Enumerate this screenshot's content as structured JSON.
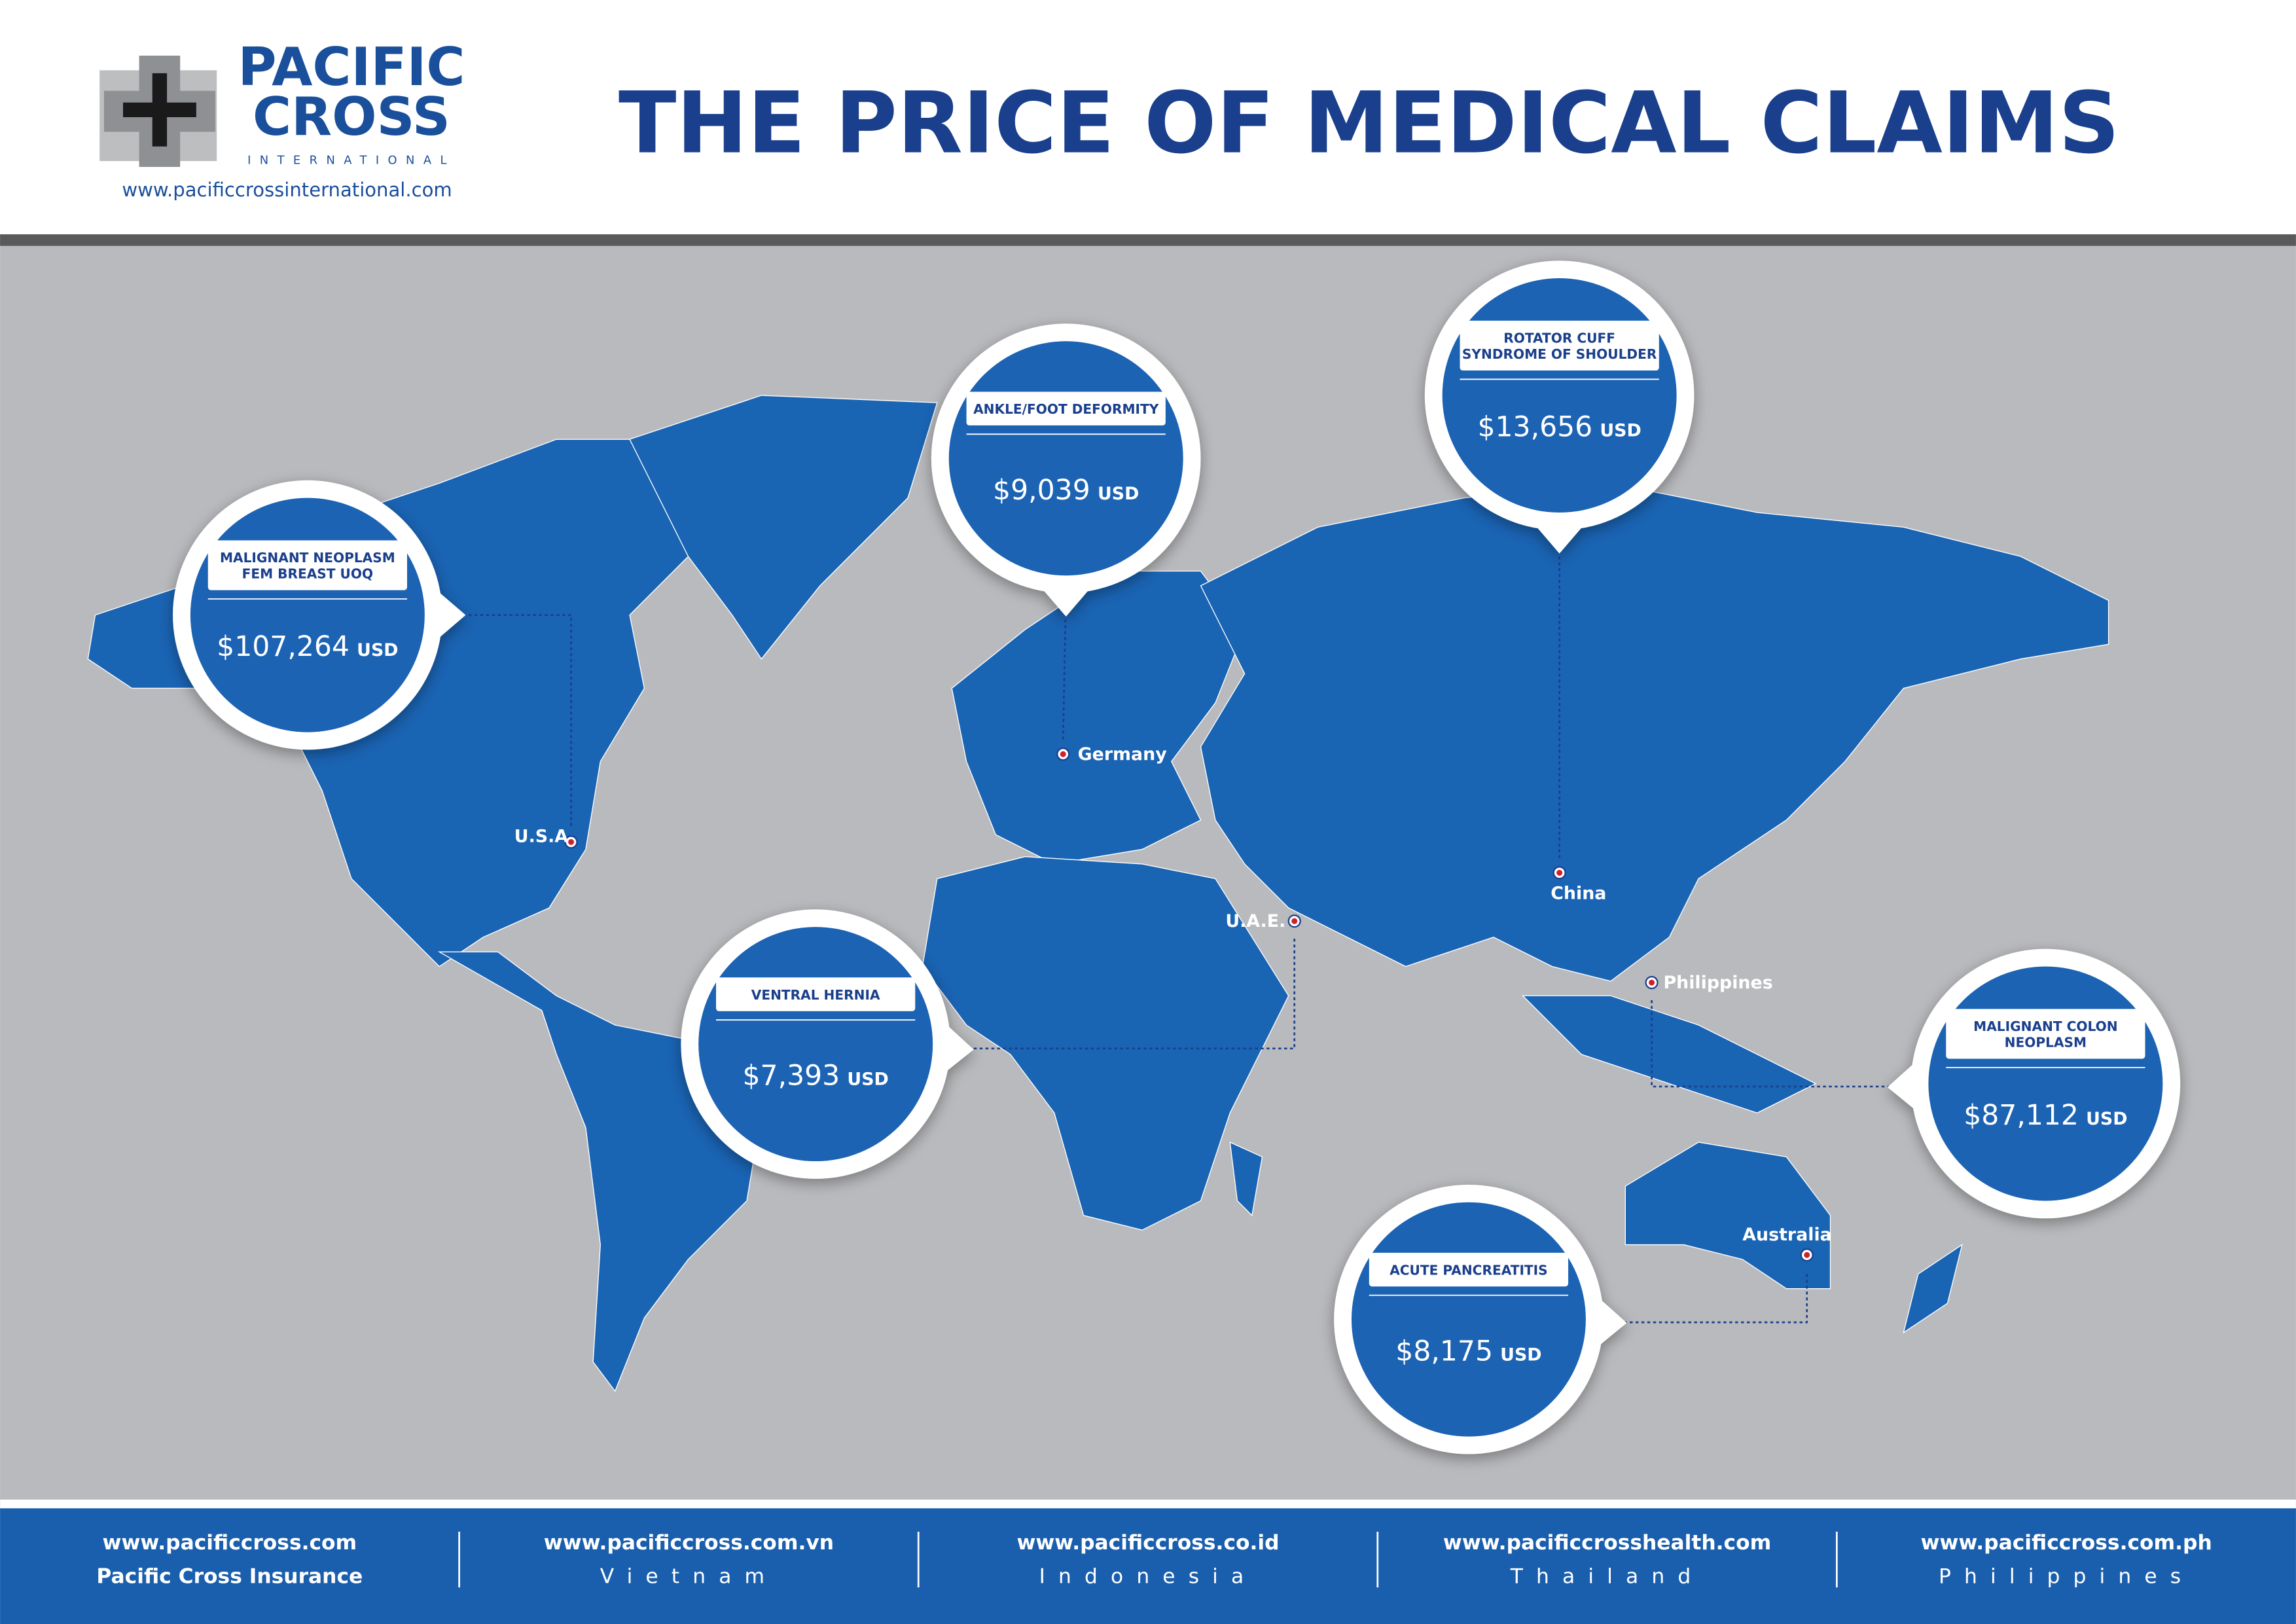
{
  "header": {
    "brand": [
      "PACIFIC",
      "CROSS"
    ],
    "brand_sub": "INTERNATIONAL",
    "url": "www.pacificcrossinternational.com",
    "title": "THE PRICE OF MEDICAL CLAIMS"
  },
  "callouts": [
    {
      "label": [
        "MALIGNANT NEOPLASM",
        "FEM BREAST UOQ"
      ],
      "amount": "$107,264",
      "unit": "USD",
      "country": "U.S.A"
    },
    {
      "label": [
        "ANKLE/FOOT DEFORMITY"
      ],
      "amount": "$9,039",
      "unit": "USD",
      "country": "Germany"
    },
    {
      "label": [
        "ROTATOR CUFF",
        "SYNDROME OF SHOULDER"
      ],
      "amount": "$13,656",
      "unit": "USD",
      "country": "China"
    },
    {
      "label": [
        "VENTRAL HERNIA"
      ],
      "amount": "$7,393",
      "unit": "USD",
      "country": "U.A.E."
    },
    {
      "label": [
        "MALIGNANT COLON",
        "NEOPLASM"
      ],
      "amount": "$87,112",
      "unit": "USD",
      "country": "Philippines"
    },
    {
      "label": [
        "ACUTE PANCREATITIS"
      ],
      "amount": "$8,175",
      "unit": "USD",
      "country": "Australia"
    }
  ],
  "footer": [
    {
      "url": "www.pacificcross.com",
      "name": "Pacific Cross Insurance"
    },
    {
      "url": "www.pacificcross.com.vn",
      "name": "Vietnam"
    },
    {
      "url": "www.pacificcross.co.id",
      "name": "Indonesia"
    },
    {
      "url": "www.pacificcrosshealth.com",
      "name": "Thailand"
    },
    {
      "url": "www.pacificcross.com.ph",
      "name": "Philippines"
    }
  ]
}
